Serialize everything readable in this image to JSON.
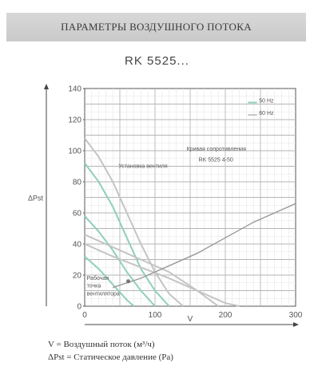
{
  "header": {
    "title": "ПАРАМЕТРЫ ВОЗДУШНОГО ПОТОКА"
  },
  "model_title": "RK 5525...",
  "legend_text": {
    "v_line": "V    = Воздушный поток  (м³/ч)",
    "p_line": "ΔPst = Статическое давление  (Pa)"
  },
  "chart_data": {
    "type": "line",
    "xlabel": "V",
    "ylabel": "ΔPst",
    "xlim": [
      0,
      300
    ],
    "ylim": [
      0,
      140
    ],
    "x_ticks": [
      0,
      100,
      200,
      300
    ],
    "y_ticks": [
      0,
      20,
      40,
      60,
      80,
      100,
      120,
      140
    ],
    "grid": true,
    "series": [
      {
        "name": "50 Hz",
        "color": "#8fcfbf",
        "x": [
          0,
          20,
          40,
          60,
          80,
          100,
          120
        ],
        "y": [
          92,
          80,
          64,
          44,
          24,
          10,
          0
        ]
      },
      {
        "name": "",
        "color": "#8fcfbf",
        "x": [
          0,
          20,
          40,
          60,
          80,
          100
        ],
        "y": [
          58,
          48,
          36,
          22,
          10,
          0
        ]
      },
      {
        "name": "",
        "color": "#8fcfbf",
        "x": [
          0,
          20,
          40,
          60,
          70
        ],
        "y": [
          32,
          24,
          14,
          4,
          0
        ]
      },
      {
        "name": "60 Hz",
        "color": "#c4c4c4",
        "x": [
          0,
          20,
          40,
          60,
          80,
          100,
          120,
          140
        ],
        "y": [
          108,
          96,
          80,
          60,
          40,
          22,
          8,
          0
        ]
      },
      {
        "name": "",
        "color": "#c4c4c4",
        "x": [
          0,
          40,
          80,
          120,
          160,
          190
        ],
        "y": [
          46,
          38,
          30,
          22,
          10,
          0
        ]
      },
      {
        "name": "",
        "color": "#c4c4c4",
        "x": [
          0,
          40,
          80,
          120,
          160,
          200,
          220
        ],
        "y": [
          40,
          32,
          25,
          18,
          10,
          2,
          0
        ]
      },
      {
        "name": "RK 5525 4-50",
        "color": "#999999",
        "x": [
          40,
          80,
          120,
          160,
          200,
          240,
          280,
          300
        ],
        "y": [
          12,
          18,
          26,
          34,
          44,
          54,
          62,
          66
        ]
      }
    ],
    "annotations": [
      {
        "text": "50 Hz",
        "x": 248,
        "y": 131
      },
      {
        "text": "60 Hz",
        "x": 248,
        "y": 123
      },
      {
        "text": "Кривая сопротивления",
        "x": 145,
        "y": 100
      },
      {
        "text": "RK 5525 4-50",
        "x": 162,
        "y": 93
      },
      {
        "text": "Установка вентиля",
        "x": 48,
        "y": 89
      },
      {
        "text": "Рабочая",
        "x": 3,
        "y": 17
      },
      {
        "text": "точка",
        "x": 3,
        "y": 12
      },
      {
        "text": "вентилятора",
        "x": 3,
        "y": 7
      }
    ]
  }
}
